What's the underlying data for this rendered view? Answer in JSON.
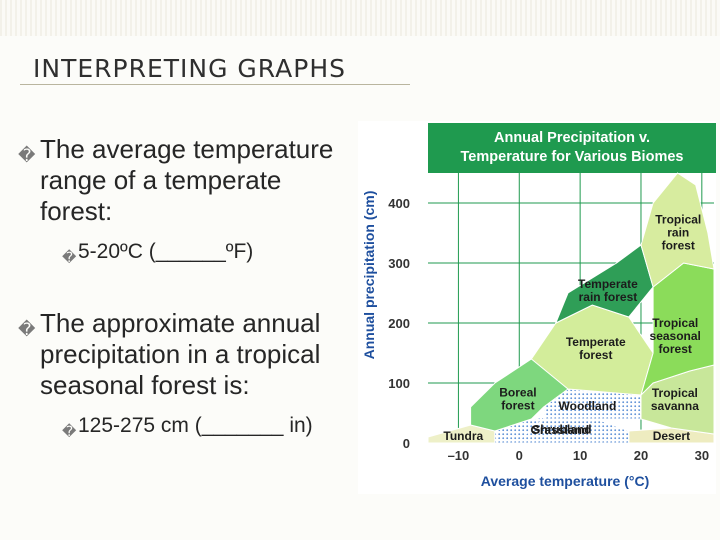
{
  "slide": {
    "title": "INTERPRETING GRAPHS",
    "bullets": [
      {
        "marker": "�",
        "text": "The average temperature range of a temperate forest:",
        "sub": {
          "marker": "�",
          "text": "5-20ºC  (______ºF)"
        }
      },
      {
        "marker": "�",
        "text": "The approximate annual precipitation in a tropical seasonal forest is:",
        "sub": {
          "marker": "�",
          "text": "125-275 cm (_______ in)"
        }
      }
    ]
  },
  "chart_data": {
    "type": "area",
    "title": "Annual Precipitation v. Temperature for Various Biomes",
    "xlabel": "Average temperature (°C)",
    "ylabel": "Annual precipitation (cm)",
    "x_ticks": [
      "–10",
      "0",
      "10",
      "20",
      "30"
    ],
    "y_ticks": [
      "0",
      "100",
      "200",
      "300",
      "400"
    ],
    "xlim": [
      -15,
      32
    ],
    "ylim": [
      0,
      450
    ],
    "regions": [
      {
        "name": "Tundra",
        "label": "Tundra",
        "color": "#eef0c8",
        "polygon": [
          [
            -15,
            0
          ],
          [
            -4,
            0
          ],
          [
            -4,
            20
          ],
          [
            -8,
            30
          ],
          [
            -15,
            10
          ]
        ]
      },
      {
        "name": "Desert",
        "label": "Desert",
        "color": "#eeecc0",
        "polygon": [
          [
            18,
            0
          ],
          [
            32,
            0
          ],
          [
            32,
            15
          ],
          [
            25,
            25
          ],
          [
            18,
            20
          ]
        ]
      },
      {
        "name": "Grassland",
        "label": "Grassland",
        "color": "#ffffff",
        "polygon": [
          [
            -4,
            0
          ],
          [
            18,
            0
          ],
          [
            18,
            20
          ],
          [
            10,
            50
          ],
          [
            2,
            40
          ],
          [
            -4,
            20
          ]
        ]
      },
      {
        "name": "Shrubland",
        "label": "Shrubland",
        "color": "#ffffff",
        "polygon": [
          [
            0,
            5
          ],
          [
            12,
            5
          ],
          [
            12,
            40
          ],
          [
            4,
            40
          ]
        ]
      },
      {
        "name": "Woodland",
        "label": "Woodland",
        "color": "#ffffff",
        "polygon": [
          [
            4,
            40
          ],
          [
            20,
            40
          ],
          [
            20,
            80
          ],
          [
            8,
            90
          ],
          [
            4,
            60
          ]
        ]
      },
      {
        "name": "Boreal forest",
        "label": "Boreal\nforest",
        "color": "#7ed77e",
        "polygon": [
          [
            -8,
            30
          ],
          [
            -4,
            20
          ],
          [
            2,
            40
          ],
          [
            4,
            60
          ],
          [
            8,
            90
          ],
          [
            6,
            120
          ],
          [
            2,
            140
          ],
          [
            -4,
            100
          ],
          [
            -8,
            60
          ]
        ]
      },
      {
        "name": "Temperate forest",
        "label": "Temperate\nforest",
        "color": "#d3ed9b",
        "polygon": [
          [
            2,
            140
          ],
          [
            8,
            90
          ],
          [
            20,
            80
          ],
          [
            22,
            150
          ],
          [
            18,
            210
          ],
          [
            12,
            230
          ],
          [
            6,
            200
          ]
        ]
      },
      {
        "name": "Temperate rain forest",
        "label": "Temperate\nrain forest",
        "color": "#2f9e57",
        "polygon": [
          [
            6,
            200
          ],
          [
            12,
            230
          ],
          [
            18,
            210
          ],
          [
            22,
            260
          ],
          [
            20,
            330
          ],
          [
            16,
            300
          ],
          [
            8,
            250
          ]
        ]
      },
      {
        "name": "Tropical savanna",
        "label": "Tropical\nsavanna",
        "color": "#c8e79a",
        "polygon": [
          [
            20,
            40
          ],
          [
            25,
            25
          ],
          [
            32,
            15
          ],
          [
            32,
            130
          ],
          [
            28,
            120
          ],
          [
            22,
            100
          ],
          [
            20,
            80
          ]
        ]
      },
      {
        "name": "Tropical seasonal forest",
        "label": "Tropical\nseasonal\nforest",
        "color": "#8bdc5a",
        "polygon": [
          [
            20,
            80
          ],
          [
            22,
            100
          ],
          [
            28,
            120
          ],
          [
            32,
            130
          ],
          [
            32,
            290
          ],
          [
            27,
            300
          ],
          [
            22,
            260
          ],
          [
            22,
            150
          ]
        ]
      },
      {
        "name": "Tropical rain forest",
        "label": "Tropical\nrain\nforest",
        "color": "#d7ec9f",
        "polygon": [
          [
            20,
            330
          ],
          [
            22,
            260
          ],
          [
            27,
            300
          ],
          [
            32,
            290
          ],
          [
            31,
            350
          ],
          [
            29,
            430
          ],
          [
            26,
            450
          ],
          [
            22,
            400
          ]
        ]
      }
    ]
  }
}
